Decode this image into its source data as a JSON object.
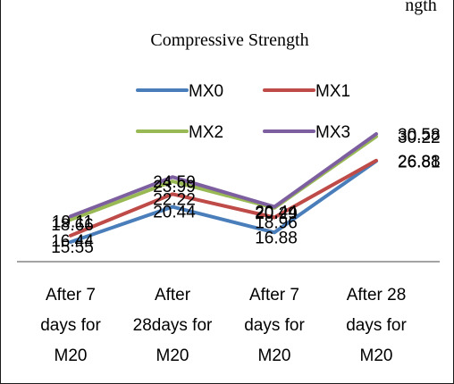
{
  "chart_data": {
    "type": "line",
    "top_caption_fragment": "ngth",
    "title": "Compressive Strength",
    "categories": [
      [
        "After 7",
        "days for",
        "M20"
      ],
      [
        "After",
        "28days for",
        "M20"
      ],
      [
        "After 7",
        "days for",
        "M20"
      ],
      [
        "After 28",
        "days for",
        "M20"
      ]
    ],
    "series": [
      {
        "name": "MX0",
        "color": "#4a7ebb",
        "values": [
          15.55,
          20.44,
          16.88,
          26.81
        ]
      },
      {
        "name": "MX1",
        "color": "#be4b48",
        "values": [
          16.44,
          22.22,
          18.96,
          26.88
        ]
      },
      {
        "name": "MX2",
        "color": "#98b954",
        "values": [
          18.66,
          23.99,
          20.29,
          30.22
        ]
      },
      {
        "name": "MX3",
        "color": "#7d5fa0",
        "values": [
          19.11,
          24.59,
          20.44,
          30.58
        ]
      }
    ],
    "legend_position": "top",
    "grid": false
  }
}
